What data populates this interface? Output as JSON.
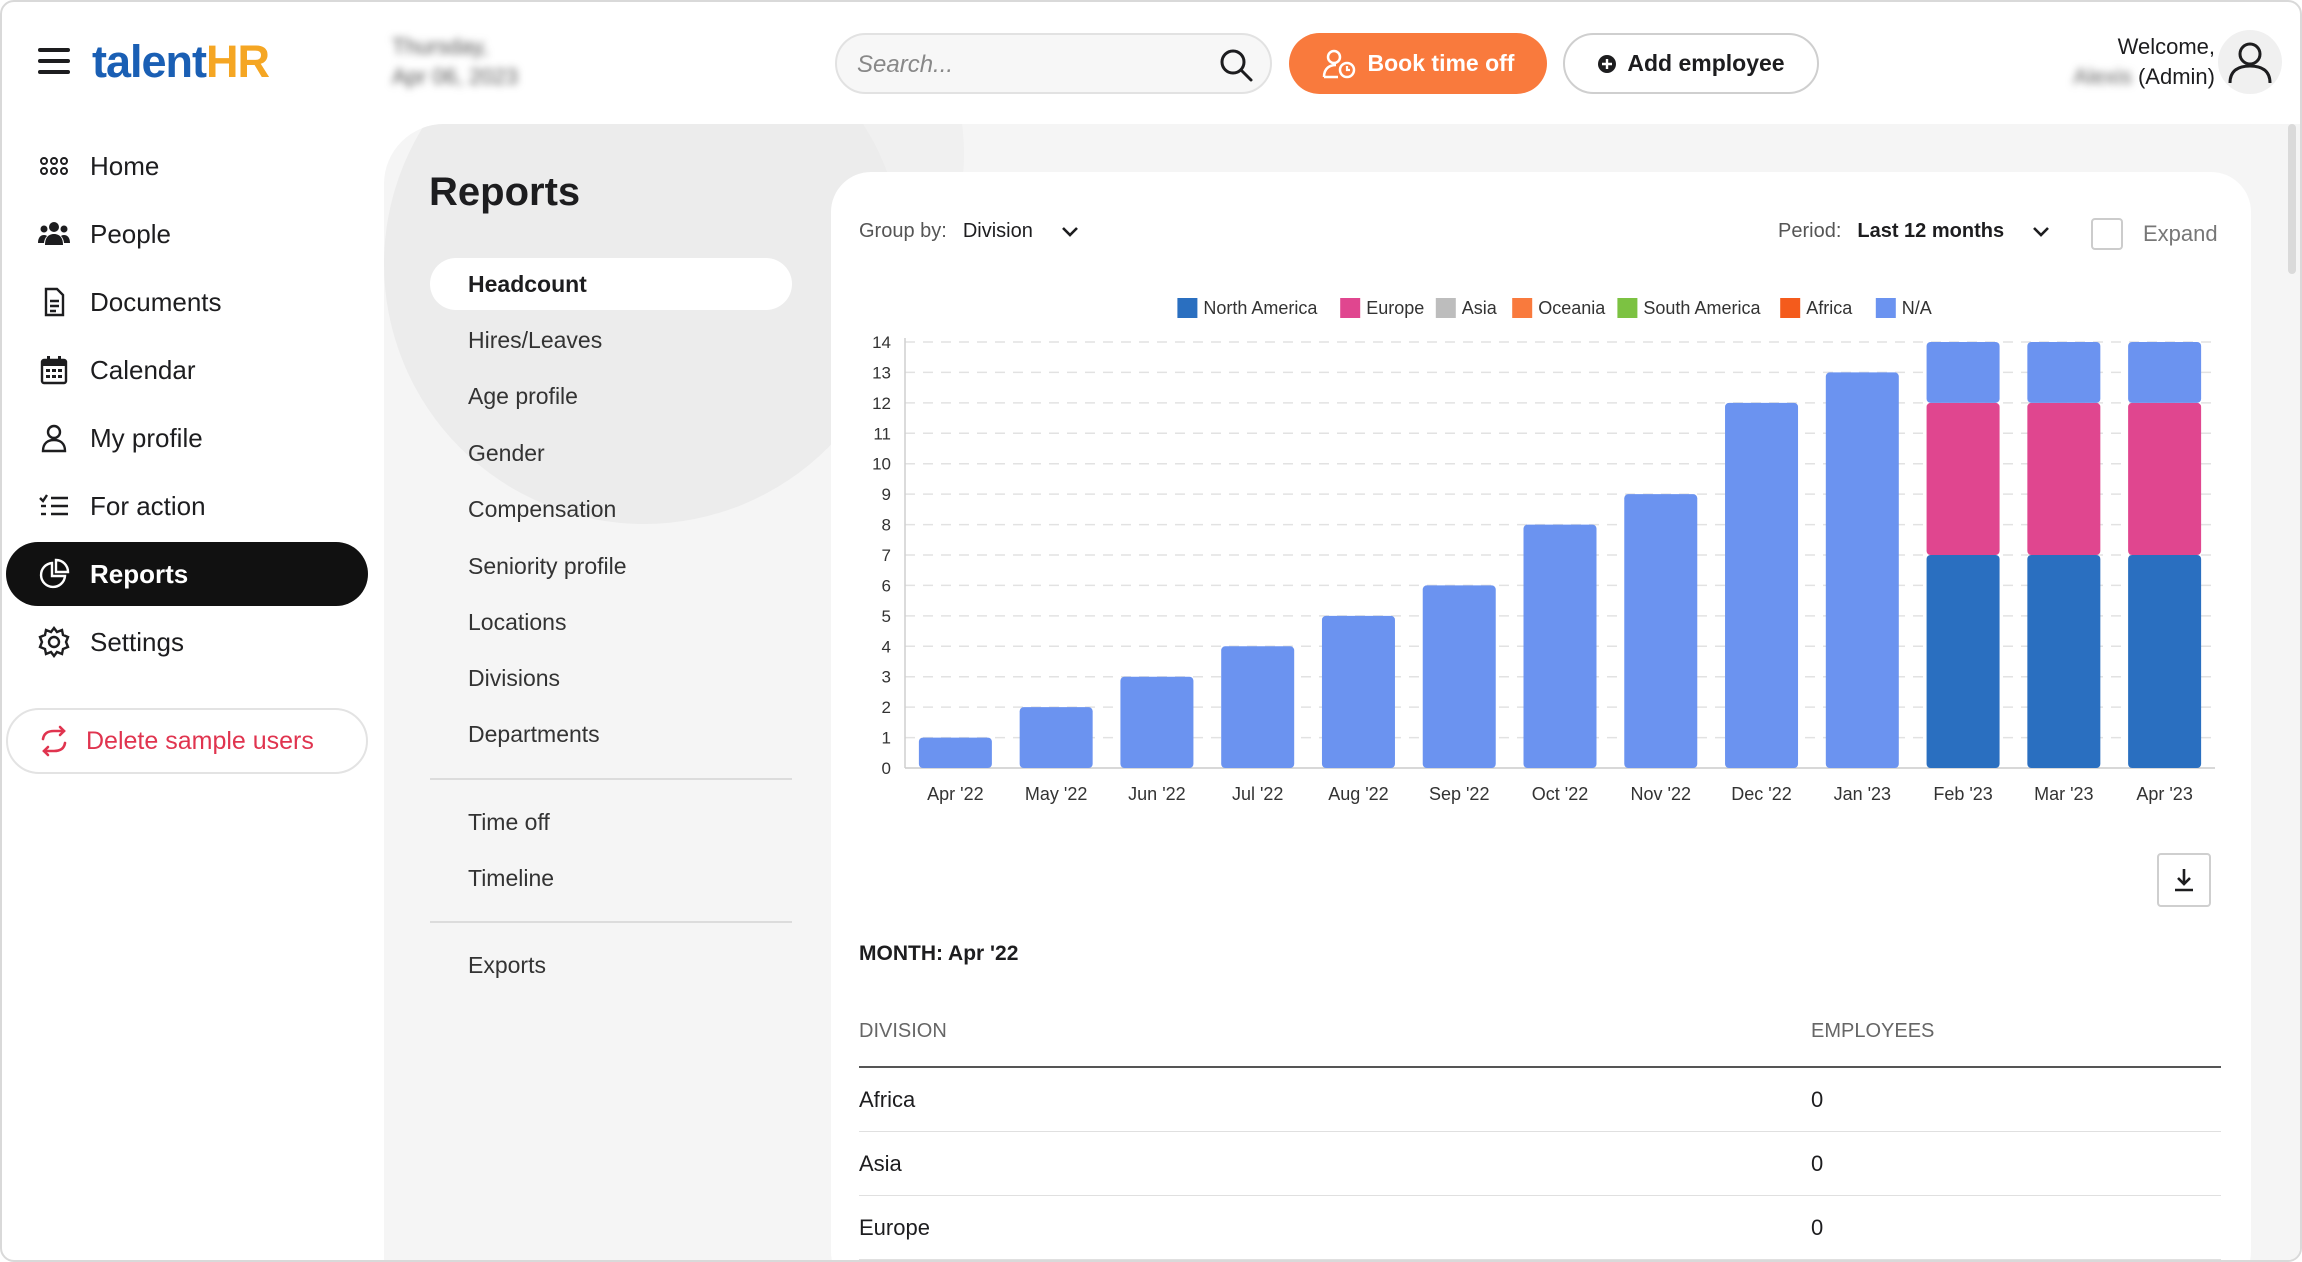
{
  "header": {
    "logo_talent": "talent",
    "logo_hr": "HR",
    "date_line1": "Thursday,",
    "date_line2": "Apr 06, 2023",
    "search_placeholder": "Search...",
    "book_time_off_label": "Book time off",
    "add_employee_label": "Add employee",
    "welcome_text": "Welcome,",
    "user_name": "Alexis",
    "user_role": "(Admin)"
  },
  "sidebar": {
    "items": [
      {
        "label": "Home",
        "icon": "grid-icon"
      },
      {
        "label": "People",
        "icon": "people-icon"
      },
      {
        "label": "Documents",
        "icon": "document-icon"
      },
      {
        "label": "Calendar",
        "icon": "calendar-icon"
      },
      {
        "label": "My profile",
        "icon": "user-icon"
      },
      {
        "label": "For action",
        "icon": "checklist-icon"
      },
      {
        "label": "Reports",
        "icon": "pie-chart-icon",
        "active": true
      },
      {
        "label": "Settings",
        "icon": "gear-icon"
      }
    ],
    "delete_sample_label": "Delete sample users"
  },
  "reports": {
    "title": "Reports",
    "menu_group1": [
      "Headcount",
      "Hires/Leaves",
      "Age profile",
      "Gender",
      "Compensation",
      "Seniority profile",
      "Locations",
      "Divisions",
      "Departments"
    ],
    "menu_group2": [
      "Time off",
      "Timeline"
    ],
    "menu_group3": [
      "Exports"
    ],
    "active": "Headcount"
  },
  "controls": {
    "group_by_label": "Group by:",
    "group_by_value": "Division",
    "period_label": "Period:",
    "period_value": "Last 12 months",
    "expand_label": "Expand"
  },
  "colors": {
    "accent_orange": "#f97a3d",
    "active_nav": "#111111",
    "delete_red": "#e0344f"
  },
  "chart_data": {
    "type": "bar",
    "stacked": true,
    "title": "",
    "xlabel": "",
    "ylabel": "",
    "ylim": [
      0,
      14
    ],
    "yticks": [
      0,
      1,
      2,
      3,
      4,
      5,
      6,
      7,
      8,
      9,
      10,
      11,
      12,
      13,
      14
    ],
    "categories": [
      "Apr '22",
      "May '22",
      "Jun '22",
      "Jul '22",
      "Aug '22",
      "Sep '22",
      "Oct '22",
      "Nov '22",
      "Dec '22",
      "Jan '23",
      "Feb '23",
      "Mar '23",
      "Apr '23"
    ],
    "legend": [
      {
        "name": "North America",
        "color": "#2a6fc0"
      },
      {
        "name": "Europe",
        "color": "#e0468f"
      },
      {
        "name": "Asia",
        "color": "#bdbdbd"
      },
      {
        "name": "Oceania",
        "color": "#f97a3d"
      },
      {
        "name": "South America",
        "color": "#7cc242"
      },
      {
        "name": "Africa",
        "color": "#f45b1c"
      },
      {
        "name": "N/A",
        "color": "#6b93f0"
      }
    ],
    "series": [
      {
        "name": "North America",
        "color": "#2a6fc0",
        "values": [
          0,
          0,
          0,
          0,
          0,
          0,
          0,
          0,
          0,
          0,
          7,
          7,
          7
        ]
      },
      {
        "name": "Europe",
        "color": "#e0468f",
        "values": [
          0,
          0,
          0,
          0,
          0,
          0,
          0,
          0,
          0,
          0,
          5,
          5,
          5
        ]
      },
      {
        "name": "Asia",
        "color": "#bdbdbd",
        "values": [
          0,
          0,
          0,
          0,
          0,
          0,
          0,
          0,
          0,
          0,
          0,
          0,
          0
        ]
      },
      {
        "name": "Oceania",
        "color": "#f97a3d",
        "values": [
          0,
          0,
          0,
          0,
          0,
          0,
          0,
          0,
          0,
          0,
          0,
          0,
          0
        ]
      },
      {
        "name": "South America",
        "color": "#7cc242",
        "values": [
          0,
          0,
          0,
          0,
          0,
          0,
          0,
          0,
          0,
          0,
          0,
          0,
          0
        ]
      },
      {
        "name": "Africa",
        "color": "#f45b1c",
        "values": [
          0,
          0,
          0,
          0,
          0,
          0,
          0,
          0,
          0,
          0,
          0,
          0,
          0
        ]
      },
      {
        "name": "N/A",
        "color": "#6b93f0",
        "values": [
          1,
          2,
          3,
          4,
          5,
          6,
          8,
          9,
          12,
          13,
          2,
          2,
          2
        ]
      }
    ],
    "grid": true,
    "legend_position": "top-center"
  },
  "table": {
    "month_title": "MONTH: Apr '22",
    "columns": [
      "DIVISION",
      "EMPLOYEES"
    ],
    "rows": [
      {
        "division": "Africa",
        "employees": "0"
      },
      {
        "division": "Asia",
        "employees": "0"
      },
      {
        "division": "Europe",
        "employees": "0"
      }
    ]
  }
}
